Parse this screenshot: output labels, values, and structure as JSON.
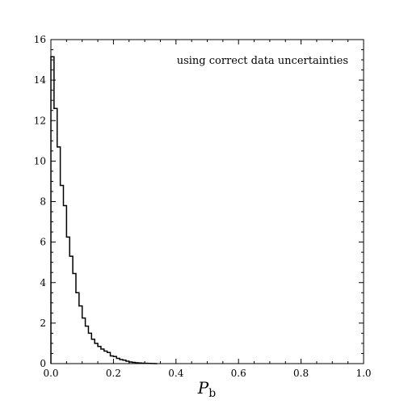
{
  "chart_data": {
    "type": "histogram",
    "style": "step",
    "line_color": "#000000",
    "annotation": "using correct data uncertainties",
    "annotation_position": "top-right",
    "xlabel_main": "P",
    "xlabel_sub": "b",
    "xlim": [
      0,
      1.0
    ],
    "ylim": [
      0,
      16
    ],
    "grid": false,
    "x_ticks": [
      {
        "value": 0.0,
        "label": "0.0"
      },
      {
        "value": 0.2,
        "label": "0.2"
      },
      {
        "value": 0.4,
        "label": "0.4"
      },
      {
        "value": 0.6,
        "label": "0.6"
      },
      {
        "value": 0.8,
        "label": "0.8"
      },
      {
        "value": 1.0,
        "label": "1.0"
      }
    ],
    "y_ticks": [
      {
        "value": 0,
        "label": "0"
      },
      {
        "value": 2,
        "label": "2"
      },
      {
        "value": 4,
        "label": "4"
      },
      {
        "value": 6,
        "label": "6"
      },
      {
        "value": 8,
        "label": "8"
      },
      {
        "value": 10,
        "label": "10"
      },
      {
        "value": 12,
        "label": "12"
      },
      {
        "value": 14,
        "label": "14"
      },
      {
        "value": 16,
        "label": "16"
      }
    ],
    "bin_width": 0.01,
    "bin_start": 0.0,
    "values": [
      15.15,
      12.6,
      10.7,
      8.8,
      7.8,
      6.25,
      5.3,
      4.45,
      3.5,
      2.85,
      2.25,
      1.85,
      1.5,
      1.2,
      1.0,
      0.85,
      0.72,
      0.62,
      0.55,
      0.38,
      0.35,
      0.26,
      0.2,
      0.17,
      0.12,
      0.08,
      0.06,
      0.04,
      0.03,
      0.02,
      0.015,
      0.01,
      0.006,
      0.0
    ]
  }
}
